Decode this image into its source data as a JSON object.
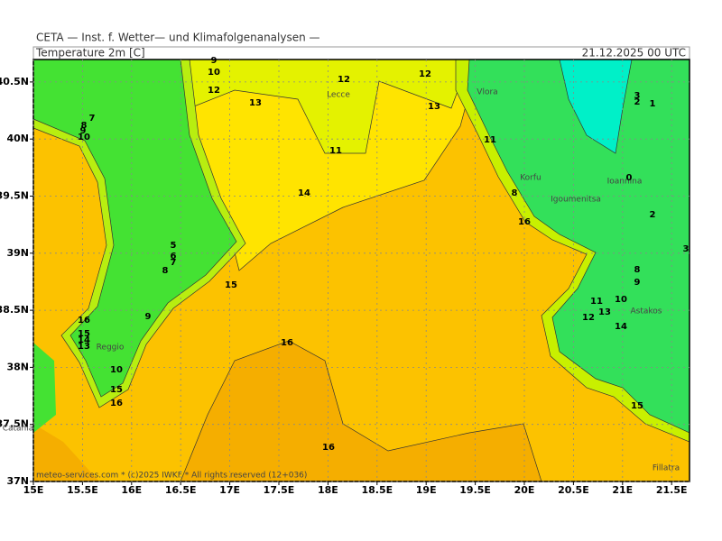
{
  "header": {
    "source": "CETA — Inst. f. Wetter— und Klimafolgenanalysen —",
    "parameter": "Temperature 2m [C]",
    "datetime": "21.12.2025 00 UTC"
  },
  "axes": {
    "longitudes": [
      "15E",
      "15.5E",
      "16E",
      "16.5E",
      "17E",
      "17.5E",
      "18E",
      "18.5E",
      "19E",
      "19.5E",
      "20E",
      "20.5E",
      "21E",
      "21.5E"
    ],
    "latitudes": [
      "40.5N",
      "40N",
      "39.5N",
      "39N",
      "38.5N",
      "38N",
      "37.5N",
      "37N"
    ]
  },
  "places": [
    "Lecce",
    "Vlora",
    "Korfu",
    "Igoumenitsa",
    "Ioannina",
    "Astakos",
    "Reggio",
    "Catania",
    "Fillatra"
  ],
  "contour_labels": [
    "9",
    "10",
    "12",
    "13",
    "12",
    "12",
    "13",
    "11",
    "14",
    "15",
    "16",
    "16",
    "11",
    "7",
    "8",
    "9",
    "10",
    "5",
    "6",
    "7",
    "8",
    "9",
    "16",
    "15",
    "14",
    "13",
    "10",
    "15",
    "16",
    "3",
    "2",
    "1",
    "0",
    "2",
    "3",
    "8",
    "9",
    "10",
    "11",
    "12",
    "13",
    "14",
    "15",
    "8",
    "16"
  ],
  "footer": "meteo-services.com * (c)2025 IWKF * All rights reserved (12+036)"
}
